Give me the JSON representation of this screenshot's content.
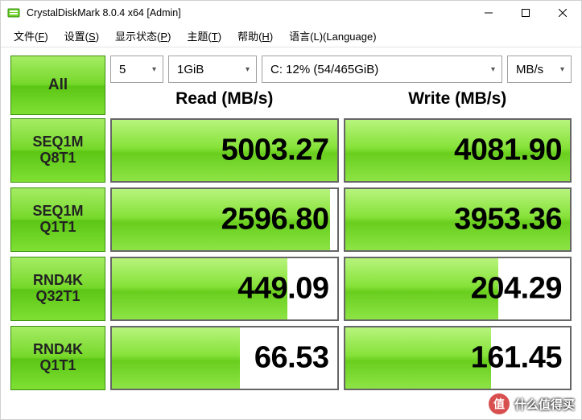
{
  "window": {
    "title": "CrystalDiskMark 8.0.4 x64 [Admin]"
  },
  "menu": {
    "file": {
      "label": "文件",
      "accel": "F"
    },
    "settings": {
      "label": "设置",
      "accel": "S"
    },
    "display": {
      "label": "显示状态",
      "accel": "P"
    },
    "theme": {
      "label": "主题",
      "accel": "T"
    },
    "help": {
      "label": "帮助",
      "accel": "H"
    },
    "language": {
      "label": "语言(L)(Language)"
    }
  },
  "controls": {
    "all_label": "All",
    "loops": {
      "value": "5"
    },
    "size": {
      "value": "1GiB"
    },
    "drive": {
      "value": "C: 12% (54/465GiB)"
    },
    "unit": {
      "value": "MB/s"
    }
  },
  "headers": {
    "read": "Read (MB/s)",
    "write": "Write (MB/s)"
  },
  "style": {
    "bar_gradient_from": "#b7f47c",
    "bar_gradient_to": "#69ce1e",
    "cell_border": "#666666",
    "value_fontsize": 38
  },
  "tests": [
    {
      "label_line1": "SEQ1M",
      "label_line2": "Q8T1",
      "read": "5003.27",
      "read_pct": 100,
      "write": "4081.90",
      "write_pct": 100
    },
    {
      "label_line1": "SEQ1M",
      "label_line2": "Q1T1",
      "read": "2596.80",
      "read_pct": 97,
      "write": "3953.36",
      "write_pct": 100
    },
    {
      "label_line1": "RND4K",
      "label_line2": "Q32T1",
      "read": "449.09",
      "read_pct": 78,
      "write": "204.29",
      "write_pct": 68
    },
    {
      "label_line1": "RND4K",
      "label_line2": "Q1T1",
      "read": "66.53",
      "read_pct": 57,
      "write": "161.45",
      "write_pct": 65
    }
  ],
  "watermark": {
    "badge": "值",
    "text": "什么值得买"
  }
}
